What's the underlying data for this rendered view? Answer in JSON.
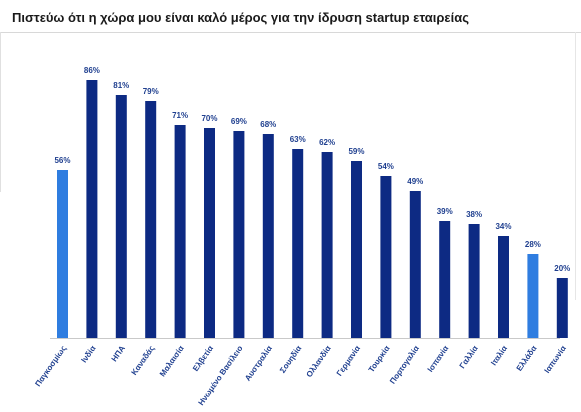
{
  "chart_data": {
    "type": "bar",
    "title": "Πιστεύω ότι η χώρα μου είναι καλό μέρος για την ίδρυση startup εταιρείας",
    "categories": [
      "Παγκοσμίως",
      "Ινδία",
      "ΗΠΑ",
      "Καναδάς",
      "Μαλαισία",
      "Ελβετία",
      "Ηνωμένο Βασίλειο",
      "Αυστραλία",
      "Σουηδία",
      "Ολλανδία",
      "Γερμανία",
      "Τουρκία",
      "Πορτογαλία",
      "Ισπανία",
      "Γαλλία",
      "Ιταλία",
      "Ελλάδα",
      "Ιαπωνία"
    ],
    "values": [
      56,
      86,
      81,
      79,
      71,
      70,
      69,
      68,
      63,
      62,
      59,
      54,
      49,
      39,
      38,
      34,
      28,
      20
    ],
    "value_labels": [
      "56%",
      "86%",
      "81%",
      "79%",
      "71%",
      "70%",
      "69%",
      "68%",
      "63%",
      "62%",
      "59%",
      "54%",
      "49%",
      "39%",
      "38%",
      "34%",
      "28%",
      "20%"
    ],
    "highlighted_categories": [
      "Παγκοσμίως",
      "Ελλάδα"
    ],
    "ylim": [
      0,
      90
    ],
    "grid": false,
    "legend": "none",
    "xlabel": "",
    "ylabel": "",
    "colors": {
      "default": "#0d2a83",
      "highlight": "#2f7de0",
      "label": "#1f3f8f"
    }
  }
}
